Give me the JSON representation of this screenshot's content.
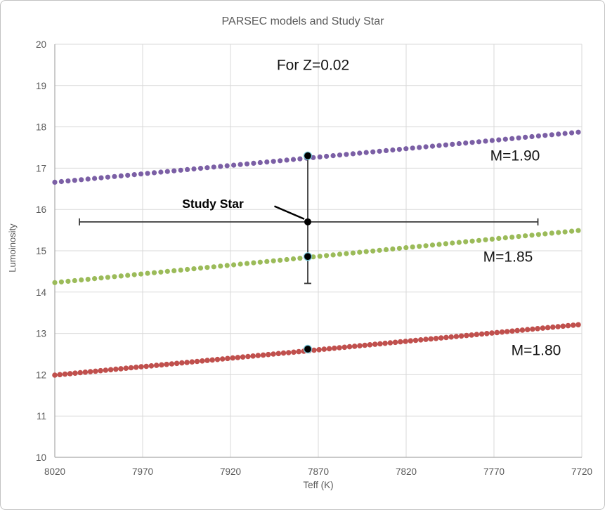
{
  "figure": {
    "border_color": "#c2c2c2",
    "background": "#ffffff"
  },
  "chart_data": {
    "type": "scatter",
    "title": "PARSEC models and Study Star",
    "title_color": "#595959",
    "xlabel": "Teff (K)",
    "ylabel": "Lumoinosity",
    "axis_text_color": "#595959",
    "grid": true,
    "gridline_color": "#d9d9d9",
    "axis_line_color": "#a9a9a9",
    "x_ticks": [
      8020,
      7970,
      7920,
      7870,
      7820,
      7770,
      7720
    ],
    "x_range": [
      8020,
      7720
    ],
    "x_reversed": true,
    "y_ticks": [
      10,
      11,
      12,
      13,
      14,
      15,
      16,
      17,
      18,
      19,
      20
    ],
    "y_range": [
      10,
      20
    ],
    "series": [
      {
        "name": "M=1.90",
        "color": "#7b5fa5",
        "marker": "circle",
        "teff_start": 8020,
        "teff_end": 7722,
        "lum_start": 16.66,
        "lum_end": 17.87,
        "n_points": 80,
        "dot_radius": 3.6,
        "label_pos": {
          "teff": 7758,
          "lum": 17.28
        }
      },
      {
        "name": "M=1.85",
        "color": "#9bbb59",
        "marker": "circle",
        "teff_start": 8020,
        "teff_end": 7722,
        "lum_start": 14.23,
        "lum_end": 15.49,
        "n_points": 80,
        "dot_radius": 3.6,
        "label_pos": {
          "teff": 7762,
          "lum": 14.83
        }
      },
      {
        "name": "M=1.80",
        "color": "#c0504d",
        "marker": "circle",
        "teff_start": 8020,
        "teff_end": 7722,
        "lum_start": 11.99,
        "lum_end": 13.21,
        "n_points": 104,
        "dot_radius": 3.8,
        "label_pos": {
          "teff": 7746,
          "lum": 12.57
        }
      }
    ],
    "model_points": [
      {
        "series": "M=1.90",
        "teff": 7876,
        "lum": 17.3
      },
      {
        "series": "M=1.85",
        "teff": 7876,
        "lum": 14.86
      },
      {
        "series": "M=1.80",
        "teff": 7876,
        "lum": 12.62
      }
    ],
    "model_point_style": {
      "fill": "#000000",
      "halo_color": "#7ecfe2",
      "radius": 5.5
    },
    "study_star": {
      "label": "Study Star",
      "teff": 7876,
      "lum": 15.7,
      "teff_error_range": [
        8006,
        7745
      ],
      "lum_error_range": [
        14.21,
        17.3
      ],
      "color": "#000000",
      "error_bar_color": "#3a3a3a",
      "label_pos": {
        "teff": 7930,
        "lum": 16.12
      },
      "leader_from": {
        "teff": 7895,
        "lum": 16.08
      },
      "leader_to": {
        "teff": 7878,
        "lum": 15.77
      }
    },
    "annotations": [
      {
        "text": "For Z=0.02",
        "teff": 7873,
        "lum": 19.47
      }
    ]
  }
}
